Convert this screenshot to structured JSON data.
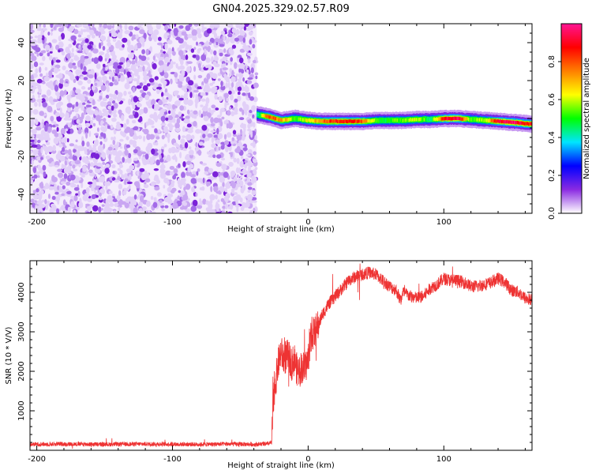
{
  "title": "GN04.2025.329.02.57.R09",
  "chart_data": [
    {
      "type": "heatmap",
      "xlabel": "Height of straight line (km)",
      "ylabel": "Frequency (Hz)",
      "xlim": [
        -205,
        165
      ],
      "ylim": [
        -50,
        50
      ],
      "xticks": [
        -200,
        -100,
        0,
        100
      ],
      "yticks": [
        -40,
        -20,
        0,
        20,
        40
      ],
      "colorbar": {
        "label": "Normalized spectral amplitude",
        "range": [
          0,
          1
        ],
        "ticks": [
          0.0,
          0.2,
          0.4,
          0.6,
          0.8
        ],
        "tick_labels": [
          "0.0",
          "0.2",
          "0.4",
          "0.6",
          "0.8"
        ],
        "colors": [
          "#ffffff",
          "#8a2be2",
          "#0000ff",
          "#00e5ff",
          "#00ff00",
          "#ffff00",
          "#ff7f00",
          "#ff0000",
          "#ff1493"
        ]
      },
      "noise_region_x": [
        -205,
        -38
      ],
      "signal_track": {
        "x": [
          -38,
          -30,
          -20,
          -10,
          0,
          10,
          20,
          30,
          40,
          50,
          60,
          70,
          80,
          90,
          100,
          110,
          120,
          130,
          140,
          150,
          165
        ],
        "freq": [
          2,
          1,
          -1,
          0,
          -1,
          -1.5,
          -1.5,
          -1.5,
          -1.5,
          -1,
          -1,
          -1,
          -0.5,
          -0.5,
          0,
          0,
          -0.5,
          -1,
          -1.5,
          -2,
          -3
        ],
        "amplitude": [
          0.4,
          0.8,
          0.75,
          0.5,
          0.65,
          0.75,
          0.85,
          0.85,
          0.8,
          0.5,
          0.5,
          0.55,
          0.6,
          0.45,
          0.9,
          0.95,
          0.5,
          0.6,
          0.9,
          0.95,
          0.85
        ]
      }
    },
    {
      "type": "line",
      "xlabel": "Height of straight line (km)",
      "ylabel": "SNR (10 * V/V)",
      "xlim": [
        -205,
        165
      ],
      "ylim": [
        0,
        4800
      ],
      "xticks": [
        -200,
        -100,
        0,
        100
      ],
      "yticks": [
        1000,
        2000,
        3000,
        4000
      ],
      "color": "#ee3333",
      "x": [
        -205,
        -180,
        -150,
        -120,
        -100,
        -80,
        -60,
        -40,
        -30,
        -27,
        -25,
        -22,
        -20,
        -18,
        -15,
        -12,
        -10,
        -8,
        -5,
        -2,
        0,
        2,
        5,
        8,
        10,
        15,
        20,
        25,
        30,
        35,
        40,
        45,
        50,
        55,
        60,
        65,
        68,
        70,
        75,
        80,
        85,
        90,
        95,
        100,
        105,
        110,
        115,
        120,
        125,
        130,
        135,
        140,
        145,
        150,
        155,
        160,
        165
      ],
      "y": [
        150,
        160,
        150,
        160,
        155,
        150,
        160,
        150,
        160,
        200,
        1500,
        2200,
        2500,
        2300,
        2400,
        2200,
        2300,
        2000,
        2100,
        2100,
        2300,
        2900,
        3000,
        3200,
        3400,
        3700,
        3900,
        4100,
        4300,
        4400,
        4450,
        4500,
        4450,
        4300,
        4150,
        4050,
        3800,
        4000,
        3900,
        3850,
        3900,
        4100,
        4200,
        4350,
        4300,
        4300,
        4250,
        4150,
        4150,
        4200,
        4250,
        4350,
        4250,
        4050,
        4000,
        3850,
        3800
      ]
    }
  ]
}
